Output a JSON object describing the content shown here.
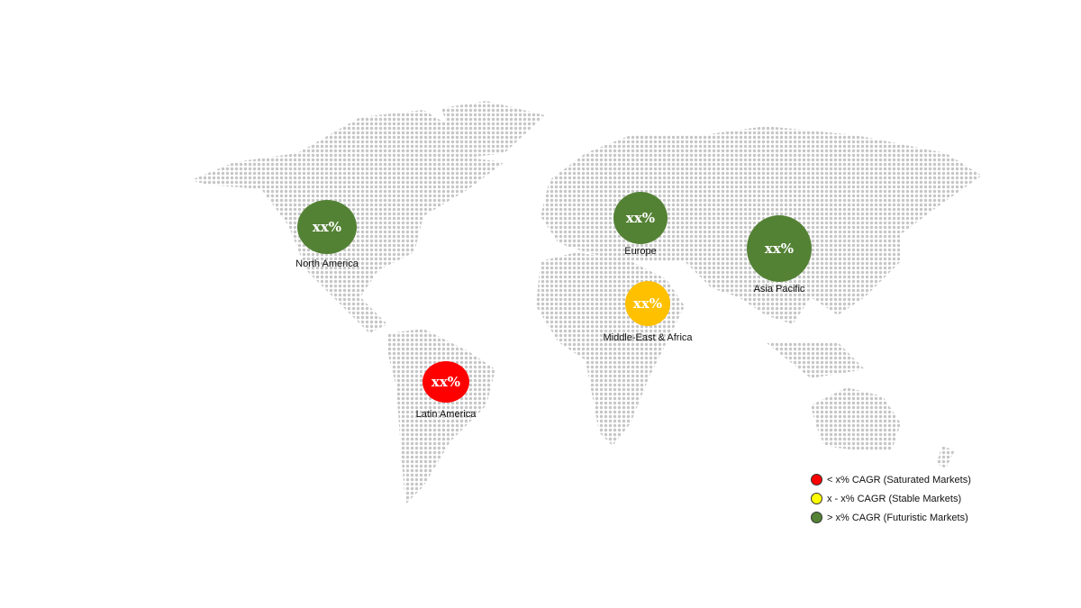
{
  "regions": [
    {
      "name": "North America",
      "value": "xx%",
      "category": "futuristic"
    },
    {
      "name": "Europe",
      "value": "xx%",
      "category": "futuristic"
    },
    {
      "name": "Asia Pacific",
      "value": "xx%",
      "category": "futuristic"
    },
    {
      "name": "Middle-East & Africa",
      "value": "xx%",
      "category": "stable"
    },
    {
      "name": "Latin America",
      "value": "xx%",
      "category": "saturated"
    }
  ],
  "colors": {
    "futuristic": "#548235",
    "stable": "#ffc000",
    "saturated": "#ff0000",
    "legend_stable": "#ffff00",
    "land_dots": "#c6c6c6"
  },
  "legend": [
    {
      "label": "< x% CAGR (Saturated Markets)",
      "color": "#ff0000"
    },
    {
      "label": "x - x% CAGR (Stable Markets)",
      "color": "#ffff00"
    },
    {
      "label": "> x% CAGR (Futuristic Markets)",
      "color": "#548235"
    }
  ]
}
